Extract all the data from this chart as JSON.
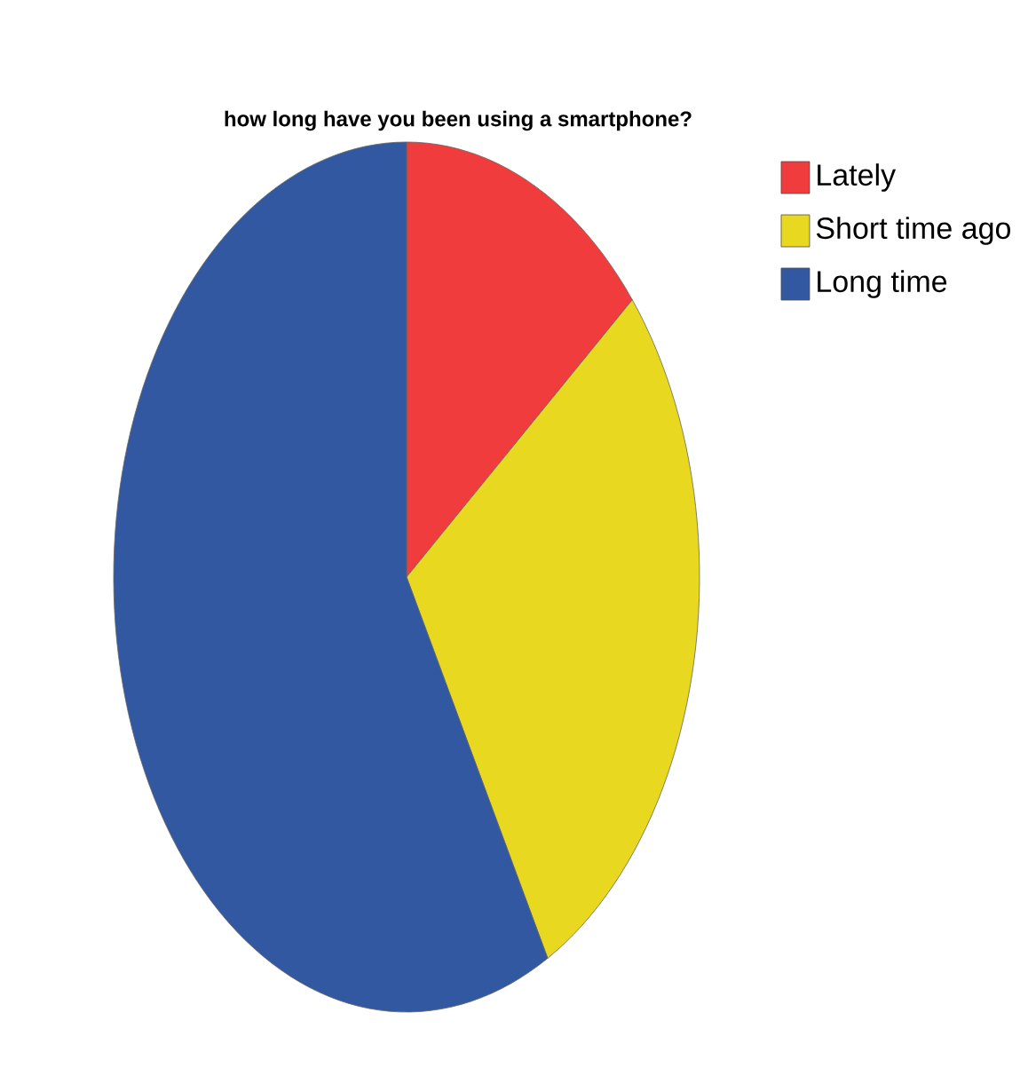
{
  "chart_data": {
    "type": "pie",
    "title": "how long have you been using a smartphone?",
    "categories": [
      "Lately",
      "Short time ago",
      "Long time"
    ],
    "values": [
      14,
      28,
      58
    ],
    "colors": [
      "#f03c3c",
      "#e8d820",
      "#3158a0"
    ],
    "legend": "top right"
  }
}
